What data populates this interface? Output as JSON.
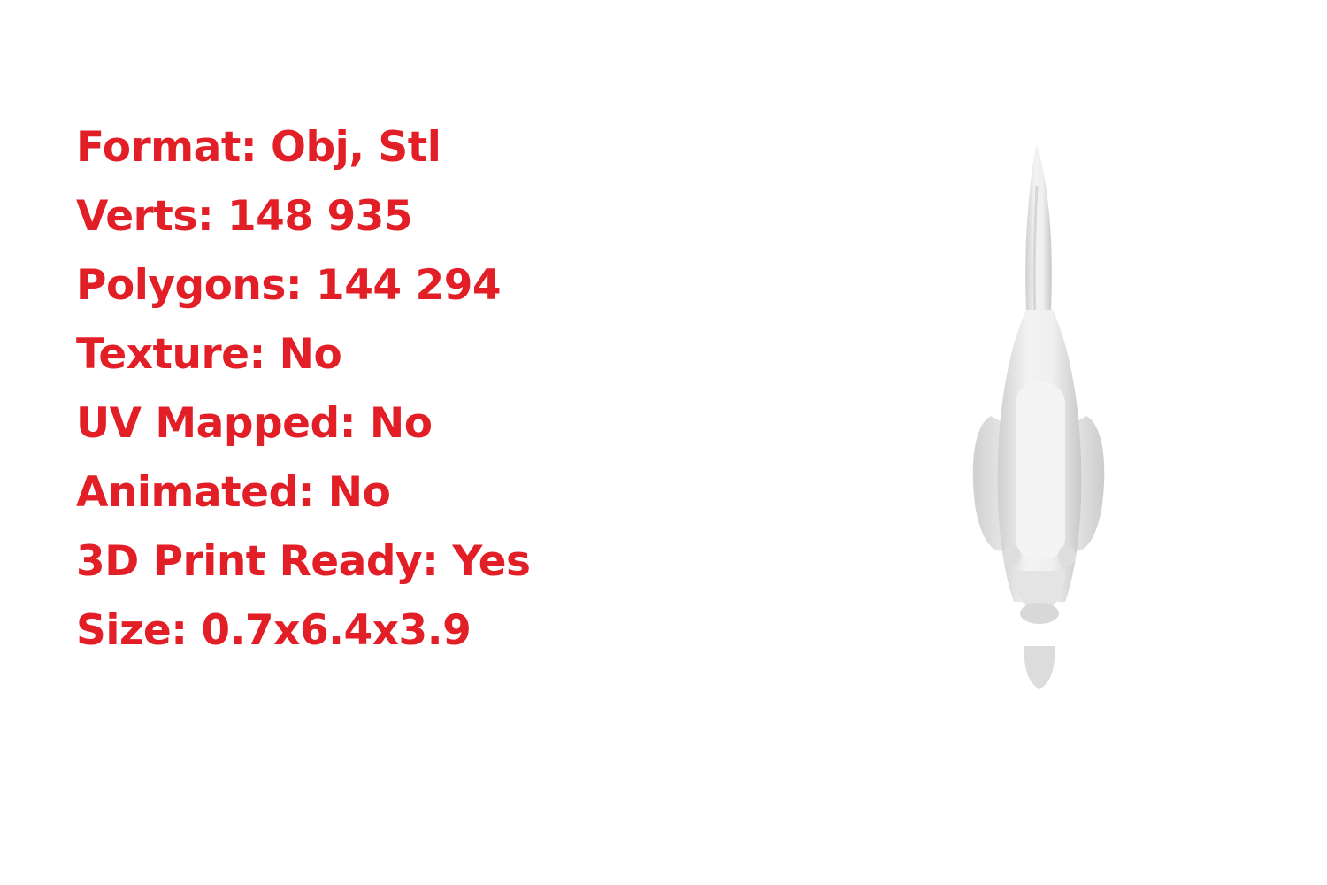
{
  "specs": [
    {
      "label": "Format",
      "value": "Obj, Stl"
    },
    {
      "label": "Verts",
      "value": "148 935"
    },
    {
      "label": "Polygons",
      "value": "144 294"
    },
    {
      "label": "Texture",
      "value": "No"
    },
    {
      "label": "UV Mapped",
      "value": "No"
    },
    {
      "label": "Animated",
      "value": "No"
    },
    {
      "label": "3D Print Ready",
      "value": "Yes"
    },
    {
      "label": "Size",
      "value": "0.7x6.4x3.9"
    }
  ],
  "colors": {
    "text": "#e21e26",
    "background": "#ffffff",
    "model": "#e6e6e6"
  },
  "model": {
    "icon": "fish-3d-model-render"
  }
}
